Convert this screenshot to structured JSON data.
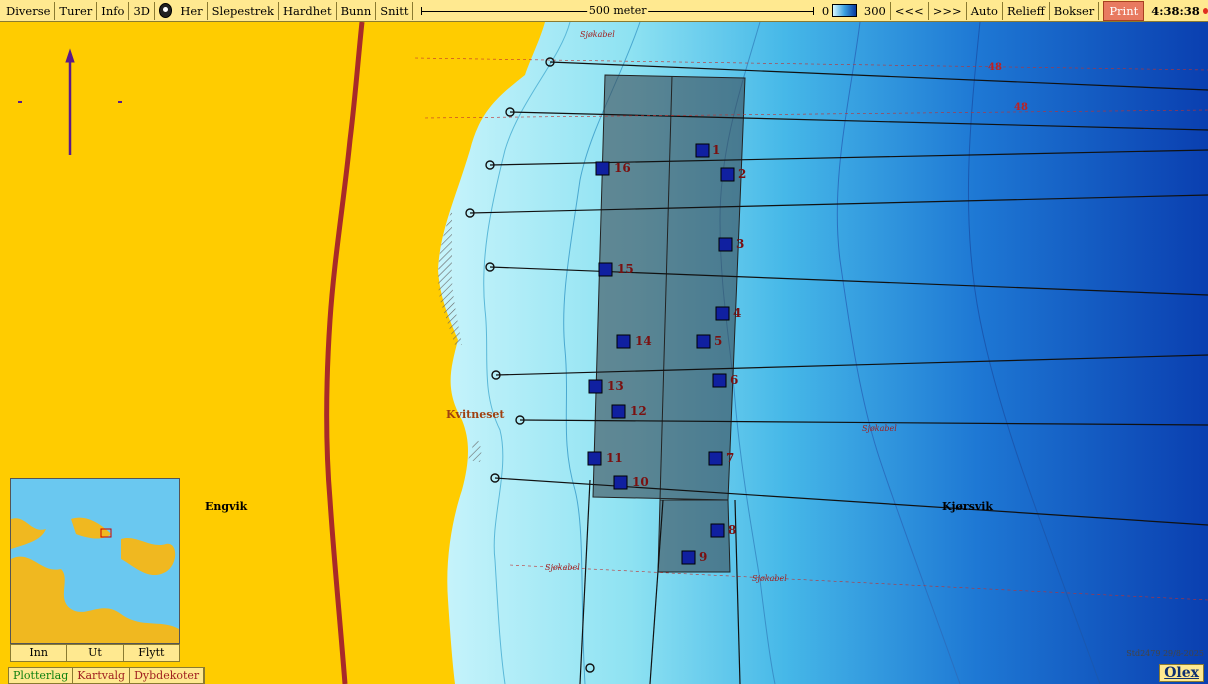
{
  "toolbar": {
    "buttons": [
      "Diverse",
      "Turer",
      "Info",
      "3D",
      "Her",
      "Slepestrek",
      "Hardhet",
      "Bunn",
      "Snitt"
    ],
    "scale_label": "500 meter",
    "depth_min": "0",
    "depth_max": "300",
    "right_buttons": [
      "<<<",
      ">>>",
      "Auto",
      "Relieff",
      "Bokser"
    ],
    "print_label": "Print",
    "time": "4:38:38"
  },
  "map": {
    "place_labels": {
      "kvitneset": "Kvitneset",
      "engvik": "Engvik",
      "kjorsvik": "Kjørsvik"
    },
    "cable_label": "Sjøkabel",
    "depth_marks": [
      "48",
      "48"
    ],
    "waypoints": [
      "1",
      "2",
      "3",
      "4",
      "5",
      "6",
      "7",
      "8",
      "9",
      "10",
      "11",
      "12",
      "13",
      "14",
      "15",
      "16"
    ],
    "stamp": "Std2479 29/8-2025"
  },
  "minimap": {
    "buttons": [
      "Inn",
      "Ut",
      "Flytt"
    ]
  },
  "bottom_tabs": [
    "Plotterlag",
    "Kartvalg",
    "Dybdekoter"
  ],
  "brand": "Olex",
  "colors": {
    "land": "#ffcc00",
    "shallow": "#c8f4fb",
    "deep": "#0a3fb0",
    "road": "#a82a2a",
    "grid": "#3a4a55",
    "waypoint": "#1020a0"
  }
}
